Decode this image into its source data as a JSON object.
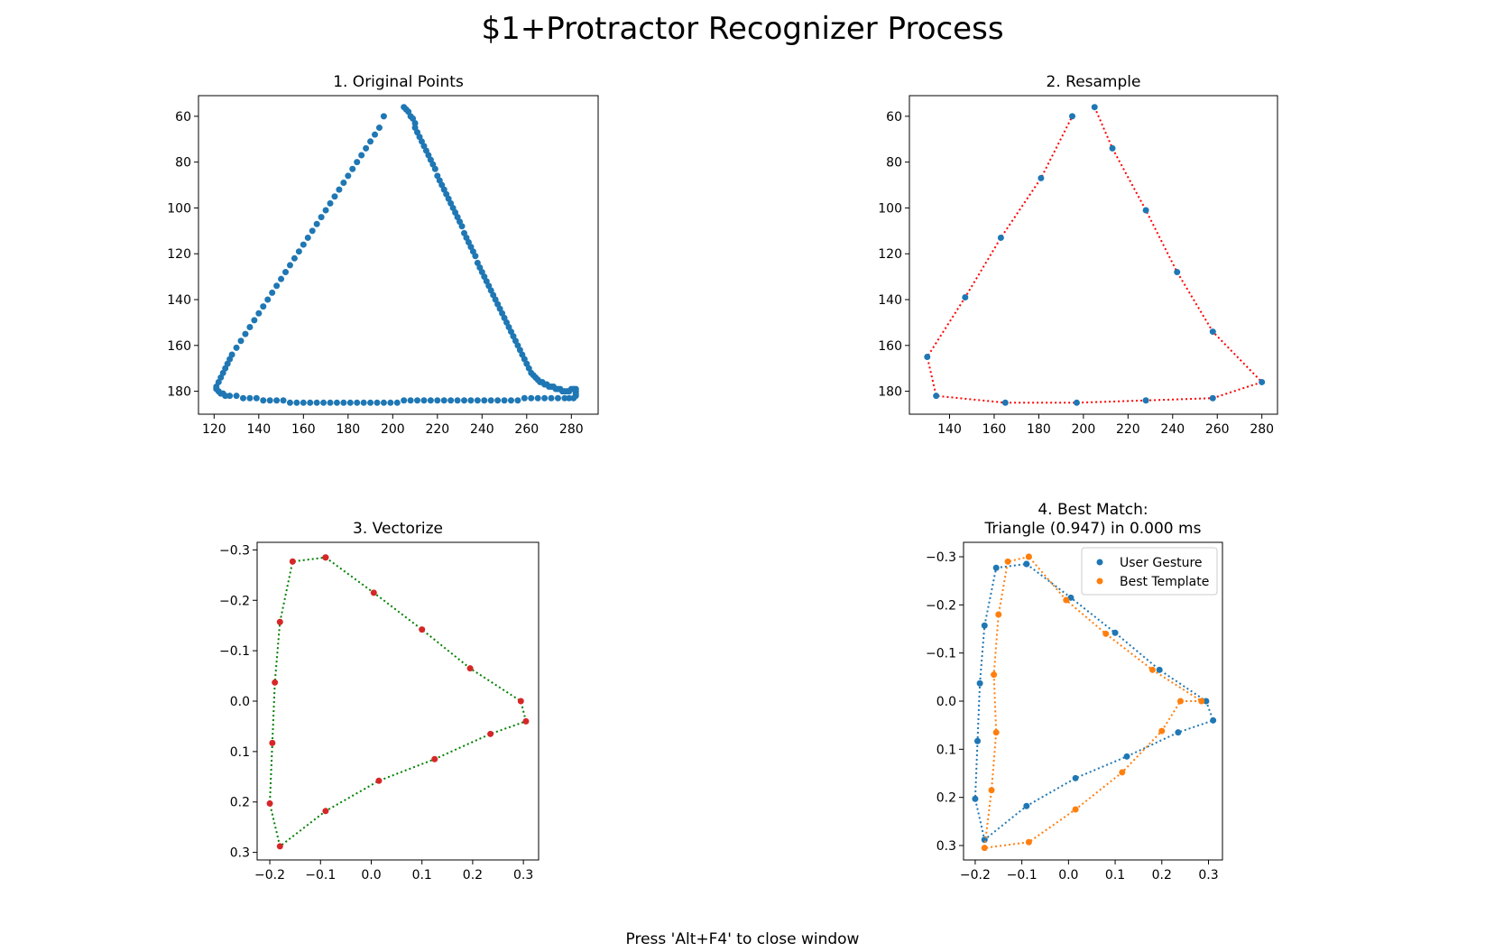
{
  "window": {
    "title": "$1+Protractor Recognizer Process",
    "footer": "Press 'Alt+F4' to close window"
  },
  "colors": {
    "blue": "#1f77b4",
    "orange": "#ff7f0e",
    "red": "#ff0000",
    "green": "#008000",
    "red_point": "#d62728"
  },
  "chart_data": [
    {
      "type": "scatter",
      "title": "1. Original Points",
      "xlim": [
        113,
        292
      ],
      "ylim": [
        190,
        51
      ],
      "xticks": [
        120,
        140,
        160,
        180,
        200,
        220,
        240,
        260,
        280
      ],
      "yticks": [
        60,
        80,
        100,
        120,
        140,
        160,
        180
      ],
      "series": [
        {
          "color": "#1f77b4",
          "x": [
            205,
            206,
            207,
            208,
            209,
            210,
            210,
            211,
            212,
            213,
            214,
            215,
            216,
            217,
            218,
            219,
            220,
            221,
            222,
            223,
            224,
            225,
            226,
            227,
            228,
            229,
            230,
            231,
            232,
            233,
            234,
            235,
            236,
            237,
            238,
            239,
            240,
            241,
            242,
            243,
            244,
            245,
            246,
            247,
            248,
            249,
            250,
            251,
            252,
            253,
            254,
            255,
            256,
            257,
            258,
            259,
            260,
            261,
            262,
            263,
            264,
            265,
            266,
            267,
            268,
            269,
            270,
            271,
            272,
            273,
            274,
            275,
            276,
            277,
            278,
            279,
            280,
            281,
            282,
            282,
            282,
            282,
            281,
            279,
            277,
            274,
            271,
            268,
            265,
            262,
            259,
            256,
            253,
            250,
            247,
            244,
            241,
            238,
            235,
            232,
            229,
            226,
            223,
            220,
            217,
            214,
            211,
            208,
            205,
            202,
            199,
            196,
            193,
            190,
            187,
            184,
            181,
            178,
            175,
            172,
            169,
            166,
            163,
            160,
            157,
            154,
            151,
            148,
            145,
            142,
            139,
            136,
            133,
            130,
            127,
            125,
            124,
            123,
            122,
            121,
            121,
            122,
            123,
            124,
            125,
            126,
            127,
            128,
            130,
            132,
            134,
            136,
            138,
            140,
            142,
            144,
            146,
            148,
            150,
            152,
            154,
            156,
            158,
            160,
            162,
            164,
            166,
            168,
            170,
            172,
            174,
            176,
            178,
            180,
            182,
            184,
            186,
            188,
            190,
            192,
            194,
            196
          ],
          "y": [
            56,
            57,
            58,
            60,
            61,
            63,
            65,
            67,
            69,
            71,
            73,
            75,
            77,
            79,
            81,
            83,
            86,
            88,
            90,
            92,
            94,
            96,
            98,
            100,
            102,
            104,
            106,
            108,
            111,
            113,
            115,
            117,
            119,
            121,
            124,
            126,
            128,
            130,
            132,
            134,
            136,
            138,
            140,
            142,
            144,
            146,
            148,
            150,
            152,
            154,
            156,
            158,
            160,
            162,
            164,
            166,
            168,
            170,
            172,
            173,
            174,
            175,
            176,
            176,
            177,
            177,
            178,
            178,
            178,
            179,
            179,
            179,
            180,
            180,
            180,
            180,
            179,
            179,
            179,
            180,
            181,
            182,
            183,
            183,
            183,
            183,
            183,
            183,
            183,
            183,
            183,
            184,
            184,
            184,
            184,
            184,
            184,
            184,
            184,
            184,
            184,
            184,
            184,
            184,
            184,
            184,
            184,
            184,
            184,
            185,
            185,
            185,
            185,
            185,
            185,
            185,
            185,
            185,
            185,
            185,
            185,
            185,
            185,
            185,
            185,
            185,
            184,
            184,
            184,
            184,
            183,
            183,
            183,
            182,
            182,
            182,
            181,
            181,
            180,
            179,
            178,
            176,
            174,
            172,
            170,
            168,
            166,
            164,
            161,
            158,
            155,
            152,
            149,
            146,
            143,
            140,
            137,
            134,
            131,
            128,
            125,
            122,
            119,
            116,
            113,
            110,
            107,
            104,
            101,
            98,
            95,
            92,
            89,
            86,
            83,
            80,
            77,
            74,
            71,
            68,
            65,
            60
          ]
        }
      ]
    },
    {
      "type": "line",
      "title": "2. Resample",
      "xlim": [
        122,
        287
      ],
      "ylim": [
        190,
        51
      ],
      "xticks": [
        140,
        160,
        180,
        200,
        220,
        240,
        260,
        280
      ],
      "yticks": [
        60,
        80,
        100,
        120,
        140,
        160,
        180
      ],
      "series": [
        {
          "line_color": "#ff0000",
          "line_style": "dotted",
          "point_color": "#1f77b4",
          "x": [
            205,
            213,
            228,
            242,
            258,
            280,
            258,
            228,
            197,
            165,
            134,
            130,
            147,
            163,
            181,
            195
          ],
          "y": [
            56,
            74,
            101,
            128,
            154,
            176,
            183,
            184,
            185,
            185,
            182,
            165,
            139,
            113,
            87,
            60
          ]
        }
      ]
    },
    {
      "type": "line",
      "title": "3. Vectorize",
      "xlim": [
        -0.225,
        0.33
      ],
      "ylim": [
        0.315,
        -0.315
      ],
      "xticks": [
        -0.2,
        -0.1,
        0.0,
        0.1,
        0.2,
        0.3
      ],
      "xtick_labels": [
        "−0.2",
        "−0.1",
        "0.0",
        "0.1",
        "0.2",
        "0.3"
      ],
      "yticks": [
        -0.3,
        -0.2,
        -0.1,
        0.0,
        0.1,
        0.2,
        0.3
      ],
      "ytick_labels": [
        "−0.3",
        "−0.2",
        "−0.1",
        "0.0",
        "0.1",
        "0.2",
        "0.3"
      ],
      "series": [
        {
          "line_color": "#008000",
          "line_style": "dotted",
          "point_color": "#d62728",
          "x": [
            -0.09,
            0.005,
            0.1,
            0.195,
            0.295,
            0.305,
            0.235,
            0.125,
            0.015,
            -0.09,
            -0.18,
            -0.2,
            -0.195,
            -0.19,
            -0.18,
            -0.155,
            -0.09
          ],
          "y": [
            -0.285,
            -0.215,
            -0.142,
            -0.065,
            0.0,
            0.04,
            0.065,
            0.115,
            0.158,
            0.218,
            0.288,
            0.203,
            0.083,
            -0.037,
            -0.157,
            -0.277,
            -0.285
          ]
        }
      ]
    },
    {
      "type": "scatter",
      "title": "4. Best Match:\nTriangle (0.947) in 0.000 ms",
      "title_lines": [
        "4. Best Match:",
        "Triangle (0.947) in 0.000 ms"
      ],
      "xlim": [
        -0.225,
        0.33
      ],
      "ylim": [
        0.33,
        -0.33
      ],
      "xticks": [
        -0.2,
        -0.1,
        0.0,
        0.1,
        0.2,
        0.3
      ],
      "xtick_labels": [
        "−0.2",
        "−0.1",
        "0.0",
        "0.1",
        "0.2",
        "0.3"
      ],
      "yticks": [
        -0.3,
        -0.2,
        -0.1,
        0.0,
        0.1,
        0.2,
        0.3
      ],
      "ytick_labels": [
        "−0.3",
        "−0.2",
        "−0.1",
        "0.0",
        "0.1",
        "0.2",
        "0.3"
      ],
      "legend": {
        "placement": "top-right"
      },
      "series": [
        {
          "name": "User Gesture",
          "color": "#1f77b4",
          "x": [
            -0.09,
            0.005,
            0.1,
            0.195,
            0.295,
            0.31,
            0.235,
            0.125,
            0.015,
            -0.09,
            -0.18,
            -0.2,
            -0.195,
            -0.19,
            -0.18,
            -0.155,
            -0.09
          ],
          "y": [
            -0.285,
            -0.215,
            -0.142,
            -0.065,
            0.0,
            0.04,
            0.065,
            0.115,
            0.16,
            0.218,
            0.288,
            0.203,
            0.083,
            -0.037,
            -0.157,
            -0.277,
            -0.285
          ]
        },
        {
          "name": "Best Template",
          "color": "#ff7f0e",
          "x": [
            -0.085,
            -0.13,
            -0.15,
            -0.16,
            -0.155,
            -0.165,
            -0.18,
            -0.085,
            0.015,
            0.115,
            0.2,
            0.24,
            0.285,
            0.18,
            0.08,
            -0.005,
            -0.085
          ],
          "y": [
            -0.3,
            -0.29,
            -0.18,
            -0.055,
            0.065,
            0.185,
            0.305,
            0.293,
            0.225,
            0.148,
            0.062,
            0.0,
            0.0,
            -0.065,
            -0.14,
            -0.21,
            -0.3
          ]
        }
      ]
    }
  ]
}
